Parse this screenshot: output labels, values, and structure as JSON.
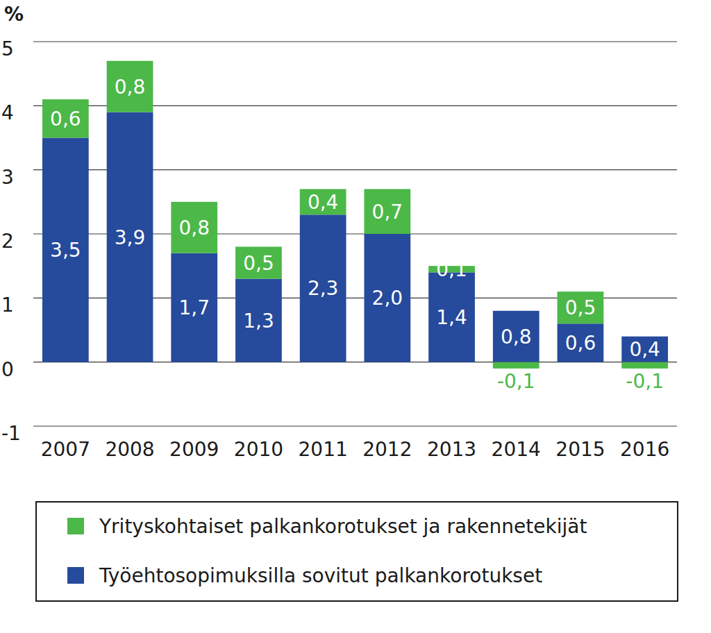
{
  "chart_data": {
    "type": "bar",
    "y_label": "%",
    "categories": [
      "2007",
      "2008",
      "2009",
      "2010",
      "2011",
      "2012",
      "2013",
      "2014",
      "2015",
      "2016"
    ],
    "series": [
      {
        "name": "Työehtosopimuksilla sovitut palkankorotukset",
        "color": "#264a9c",
        "values": [
          3.5,
          3.9,
          1.7,
          1.3,
          2.3,
          2.0,
          1.4,
          0.8,
          0.6,
          0.4
        ],
        "value_labels": [
          "3,5",
          "3,9",
          "1,7",
          "1,3",
          "2,3",
          "2,0",
          "1,4",
          "0,8",
          "0,6",
          "0,4"
        ]
      },
      {
        "name": "Yrityskohtaiset palkankorotukset ja rakennetekijät",
        "color": "#4cb848",
        "values": [
          0.6,
          0.8,
          0.8,
          0.5,
          0.4,
          0.7,
          0.1,
          -0.1,
          0.5,
          -0.1
        ],
        "value_labels": [
          "0,6",
          "0,8",
          "0,8",
          "0,5",
          "0,4",
          "0,7",
          "0,1",
          "-0,1",
          "0,5",
          "-0,1"
        ]
      }
    ],
    "ylim": [
      -1,
      5
    ],
    "yticks": [
      -1,
      0,
      1,
      2,
      3,
      4,
      5
    ],
    "grid": true,
    "stacked": true,
    "data_labels": true,
    "legend": "bottom"
  }
}
